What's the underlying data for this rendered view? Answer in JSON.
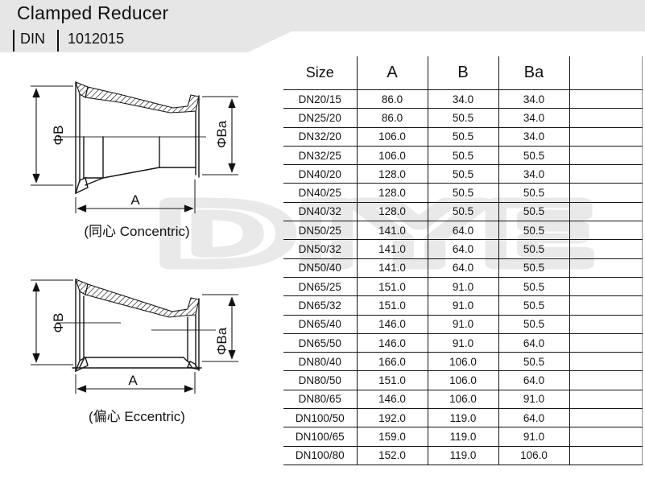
{
  "header": {
    "title": "Clamped Reducer",
    "standard_label": "DIN",
    "standard_number": "1012015"
  },
  "watermark": "DIYE",
  "drawings": {
    "concentric": {
      "caption": "(同心 Concentric)",
      "dim_diameter_large": "ΦB",
      "dim_diameter_small": "ΦBa",
      "dim_length": "A"
    },
    "eccentric": {
      "caption": "(偏心 Eccentric)",
      "dim_diameter_large": "ΦB",
      "dim_diameter_small": "ΦBa",
      "dim_length": "A"
    }
  },
  "table": {
    "columns": [
      "Size",
      "A",
      "B",
      "Ba",
      ""
    ],
    "rows": [
      [
        "DN20/15",
        "86.0",
        "34.0",
        "34.0",
        ""
      ],
      [
        "DN25/20",
        "86.0",
        "50.5",
        "34.0",
        ""
      ],
      [
        "DN32/20",
        "106.0",
        "50.5",
        "34.0",
        ""
      ],
      [
        "DN32/25",
        "106.0",
        "50.5",
        "50.5",
        ""
      ],
      [
        "DN40/20",
        "128.0",
        "50.5",
        "34.0",
        ""
      ],
      [
        "DN40/25",
        "128.0",
        "50.5",
        "50.5",
        ""
      ],
      [
        "DN40/32",
        "128.0",
        "50.5",
        "50.5",
        ""
      ],
      [
        "DN50/25",
        "141.0",
        "64.0",
        "50.5",
        ""
      ],
      [
        "DN50/32",
        "141.0",
        "64.0",
        "50.5",
        ""
      ],
      [
        "DN50/40",
        "141.0",
        "64.0",
        "50.5",
        ""
      ],
      [
        "DN65/25",
        "151.0",
        "91.0",
        "50.5",
        ""
      ],
      [
        "DN65/32",
        "151.0",
        "91.0",
        "50.5",
        ""
      ],
      [
        "DN65/40",
        "146.0",
        "91.0",
        "50.5",
        ""
      ],
      [
        "DN65/50",
        "146.0",
        "91.0",
        "64.0",
        ""
      ],
      [
        "DN80/40",
        "166.0",
        "106.0",
        "50.5",
        ""
      ],
      [
        "DN80/50",
        "151.0",
        "106.0",
        "64.0",
        ""
      ],
      [
        "DN80/65",
        "146.0",
        "106.0",
        "91.0",
        ""
      ],
      [
        "DN100/50",
        "192.0",
        "119.0",
        "64.0",
        ""
      ],
      [
        "DN100/65",
        "159.0",
        "119.0",
        "91.0",
        ""
      ],
      [
        "DN100/80",
        "152.0",
        "119.0",
        "106.0",
        ""
      ]
    ]
  },
  "colors": {
    "header_band": "#e6e6e6",
    "line": "#161616",
    "watermark": "#e9e9e9",
    "table_outer_border": "#8f8f8f"
  }
}
